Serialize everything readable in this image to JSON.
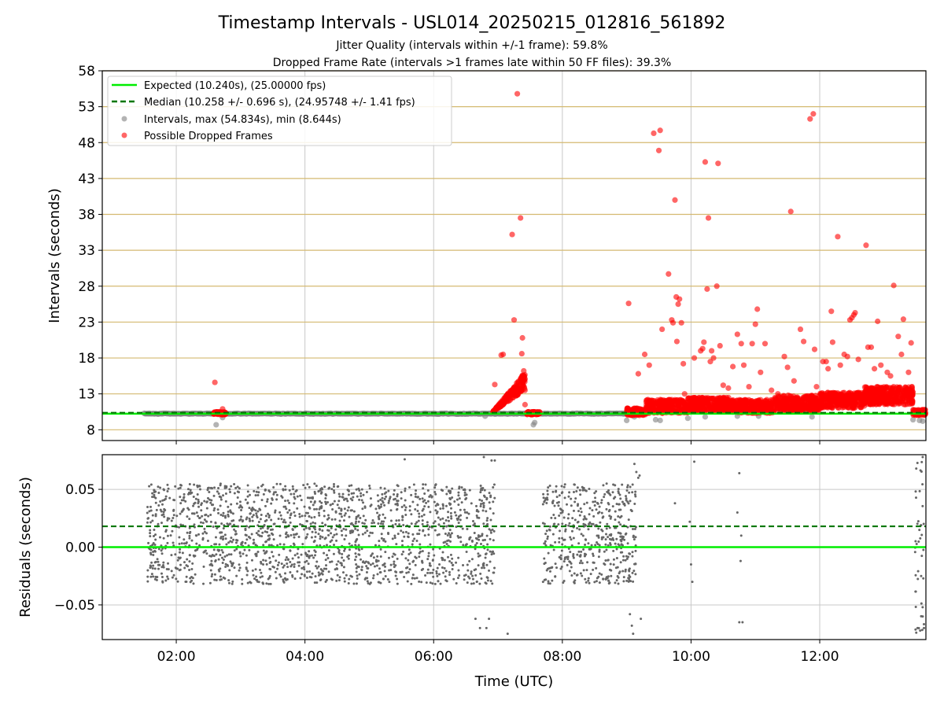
{
  "header": {
    "title": "Timestamp Intervals - USL014_20250215_012816_561892",
    "subtitle_1": "Jitter Quality (intervals within +/-1 frame): 59.8%",
    "subtitle_2": "Dropped Frame Rate (intervals >1 frames late within 50 FF files): 39.3%"
  },
  "colors": {
    "expected": "#00ee00",
    "median": "#007700",
    "intervals": "#808080",
    "dropped": "#ff0000",
    "hgrid": "#d4b970",
    "vgrid": "#c8c8c8"
  },
  "chart_data": [
    {
      "type": "scatter",
      "title": "",
      "xlabel": "",
      "ylabel": "Intervals (seconds)",
      "x_unit": "hours UTC",
      "xlim": [
        0.85,
        13.65
      ],
      "ylim": [
        6.5,
        58
      ],
      "x_ticks": [
        2,
        4,
        6,
        8,
        10,
        12
      ],
      "y_ticks": [
        8,
        13,
        18,
        23,
        28,
        33,
        38,
        43,
        48,
        53,
        58
      ],
      "y_tick_labels": [
        "8",
        "13",
        "18",
        "23",
        "28",
        "33",
        "38",
        "43",
        "48",
        "53",
        "58"
      ],
      "grid": true,
      "legend_position": "top-left",
      "legend": [
        {
          "key": "expected",
          "label": "Expected (10.240s), (25.00000 fps)"
        },
        {
          "key": "median",
          "label": "Median (10.258 +/- 0.696 s), (24.95748 +/- 1.41 fps)"
        },
        {
          "key": "intervals",
          "label": "Intervals, max (54.834s), min (8.644s)"
        },
        {
          "key": "dropped",
          "label": "Possible Dropped Frames"
        }
      ],
      "expected_line": 10.24,
      "median_line": 10.258,
      "intervals_band": {
        "x_start": 1.5,
        "x_end": 9.0,
        "y": 10.24
      },
      "intervals_outliers": [
        {
          "x": 2.62,
          "y": 8.7
        },
        {
          "x": 2.72,
          "y": 9.7
        },
        {
          "x": 6.8,
          "y": 9.9
        },
        {
          "x": 7.55,
          "y": 8.7
        },
        {
          "x": 7.57,
          "y": 9.0
        },
        {
          "x": 9.0,
          "y": 9.3
        },
        {
          "x": 9.12,
          "y": 9.8
        },
        {
          "x": 9.45,
          "y": 9.4
        },
        {
          "x": 9.52,
          "y": 9.3
        },
        {
          "x": 9.95,
          "y": 9.6
        },
        {
          "x": 10.22,
          "y": 9.8
        },
        {
          "x": 10.72,
          "y": 9.9
        },
        {
          "x": 11.05,
          "y": 9.9
        },
        {
          "x": 11.88,
          "y": 9.8
        },
        {
          "x": 13.45,
          "y": 9.4
        },
        {
          "x": 13.55,
          "y": 9.3
        },
        {
          "x": 13.6,
          "y": 9.2
        }
      ],
      "dropped_isolated": [
        {
          "x": 2.6,
          "y": 14.6
        },
        {
          "x": 2.72,
          "y": 10.9
        },
        {
          "x": 7.22,
          "y": 35.2
        },
        {
          "x": 7.3,
          "y": 54.8
        },
        {
          "x": 7.35,
          "y": 37.5
        },
        {
          "x": 7.25,
          "y": 23.3
        },
        {
          "x": 7.38,
          "y": 20.8
        },
        {
          "x": 7.37,
          "y": 18.6
        },
        {
          "x": 7.4,
          "y": 16.2
        },
        {
          "x": 7.08,
          "y": 18.5
        },
        {
          "x": 7.05,
          "y": 18.4
        },
        {
          "x": 6.95,
          "y": 14.3
        },
        {
          "x": 7.42,
          "y": 11.5
        },
        {
          "x": 9.03,
          "y": 25.6
        },
        {
          "x": 9.18,
          "y": 15.8
        },
        {
          "x": 9.28,
          "y": 18.5
        },
        {
          "x": 9.35,
          "y": 17.0
        },
        {
          "x": 9.42,
          "y": 49.3
        },
        {
          "x": 9.5,
          "y": 46.9
        },
        {
          "x": 9.52,
          "y": 49.7
        },
        {
          "x": 9.55,
          "y": 22.0
        },
        {
          "x": 9.65,
          "y": 29.7
        },
        {
          "x": 9.7,
          "y": 23.3
        },
        {
          "x": 9.72,
          "y": 22.9
        },
        {
          "x": 9.75,
          "y": 40.0
        },
        {
          "x": 9.77,
          "y": 26.5
        },
        {
          "x": 9.8,
          "y": 25.5
        },
        {
          "x": 9.82,
          "y": 26.2
        },
        {
          "x": 9.78,
          "y": 20.3
        },
        {
          "x": 9.85,
          "y": 22.9
        },
        {
          "x": 9.88,
          "y": 17.2
        },
        {
          "x": 9.9,
          "y": 13.0
        },
        {
          "x": 10.05,
          "y": 18.0
        },
        {
          "x": 10.15,
          "y": 19.0
        },
        {
          "x": 10.18,
          "y": 19.3
        },
        {
          "x": 10.2,
          "y": 20.2
        },
        {
          "x": 10.22,
          "y": 45.3
        },
        {
          "x": 10.25,
          "y": 27.6
        },
        {
          "x": 10.27,
          "y": 37.5
        },
        {
          "x": 10.3,
          "y": 17.5
        },
        {
          "x": 10.32,
          "y": 19.0
        },
        {
          "x": 10.35,
          "y": 18.0
        },
        {
          "x": 10.4,
          "y": 28.0
        },
        {
          "x": 10.42,
          "y": 45.1
        },
        {
          "x": 10.45,
          "y": 19.7
        },
        {
          "x": 10.5,
          "y": 14.2
        },
        {
          "x": 10.58,
          "y": 13.8
        },
        {
          "x": 10.65,
          "y": 16.8
        },
        {
          "x": 10.72,
          "y": 21.3
        },
        {
          "x": 10.78,
          "y": 20.0
        },
        {
          "x": 10.82,
          "y": 17.0
        },
        {
          "x": 10.9,
          "y": 14.0
        },
        {
          "x": 10.95,
          "y": 20.0
        },
        {
          "x": 11.0,
          "y": 22.7
        },
        {
          "x": 11.03,
          "y": 24.8
        },
        {
          "x": 11.08,
          "y": 16.0
        },
        {
          "x": 11.15,
          "y": 20.0
        },
        {
          "x": 11.25,
          "y": 13.5
        },
        {
          "x": 11.35,
          "y": 13.0
        },
        {
          "x": 11.45,
          "y": 18.2
        },
        {
          "x": 11.5,
          "y": 16.7
        },
        {
          "x": 11.55,
          "y": 38.4
        },
        {
          "x": 11.6,
          "y": 14.8
        },
        {
          "x": 11.7,
          "y": 22.0
        },
        {
          "x": 11.75,
          "y": 20.3
        },
        {
          "x": 11.85,
          "y": 51.3
        },
        {
          "x": 11.9,
          "y": 52.0
        },
        {
          "x": 11.92,
          "y": 19.2
        },
        {
          "x": 11.95,
          "y": 14.0
        },
        {
          "x": 12.05,
          "y": 17.5
        },
        {
          "x": 12.1,
          "y": 17.5
        },
        {
          "x": 12.13,
          "y": 16.5
        },
        {
          "x": 12.18,
          "y": 24.5
        },
        {
          "x": 12.2,
          "y": 20.2
        },
        {
          "x": 12.28,
          "y": 34.9
        },
        {
          "x": 12.32,
          "y": 17.0
        },
        {
          "x": 12.38,
          "y": 18.5
        },
        {
          "x": 12.43,
          "y": 18.2
        },
        {
          "x": 12.47,
          "y": 23.3
        },
        {
          "x": 12.5,
          "y": 23.6
        },
        {
          "x": 12.53,
          "y": 24.0
        },
        {
          "x": 12.55,
          "y": 24.3
        },
        {
          "x": 12.6,
          "y": 17.8
        },
        {
          "x": 12.72,
          "y": 33.7
        },
        {
          "x": 12.75,
          "y": 19.5
        },
        {
          "x": 12.8,
          "y": 19.5
        },
        {
          "x": 12.85,
          "y": 16.5
        },
        {
          "x": 12.9,
          "y": 23.1
        },
        {
          "x": 12.95,
          "y": 17.0
        },
        {
          "x": 13.05,
          "y": 16.0
        },
        {
          "x": 13.1,
          "y": 15.5
        },
        {
          "x": 13.15,
          "y": 28.1
        },
        {
          "x": 13.22,
          "y": 21.0
        },
        {
          "x": 13.27,
          "y": 18.5
        },
        {
          "x": 13.3,
          "y": 23.4
        },
        {
          "x": 13.42,
          "y": 20.1
        },
        {
          "x": 13.38,
          "y": 16.0
        }
      ],
      "dropped_clusters": [
        {
          "x_start": 2.58,
          "x_end": 2.77,
          "y_low": 10.1,
          "y_high": 10.5
        },
        {
          "x_start": 6.92,
          "x_end": 7.42,
          "y_low": 10.5,
          "y_high": 15.5
        },
        {
          "x_start": 7.45,
          "x_end": 7.65,
          "y_low": 10.1,
          "y_high": 10.5
        },
        {
          "x_start": 9.0,
          "x_end": 9.3,
          "y_low": 10.0,
          "y_high": 11.0
        },
        {
          "x_start": 9.3,
          "x_end": 9.95,
          "y_low": 10.3,
          "y_high": 12.2
        },
        {
          "x_start": 9.95,
          "x_end": 10.6,
          "y_low": 10.5,
          "y_high": 12.5
        },
        {
          "x_start": 10.6,
          "x_end": 11.3,
          "y_low": 10.3,
          "y_high": 12.2
        },
        {
          "x_start": 11.3,
          "x_end": 12.0,
          "y_low": 10.5,
          "y_high": 12.8
        },
        {
          "x_start": 12.0,
          "x_end": 12.7,
          "y_low": 11.0,
          "y_high": 13.2
        },
        {
          "x_start": 12.7,
          "x_end": 13.45,
          "y_low": 11.5,
          "y_high": 14.0
        },
        {
          "x_start": 13.45,
          "x_end": 13.65,
          "y_low": 10.0,
          "y_high": 10.8
        }
      ]
    },
    {
      "type": "scatter",
      "title": "",
      "xlabel": "Time (UTC)",
      "ylabel": "Residuals (seconds)",
      "x_unit": "hours UTC",
      "xlim": [
        0.85,
        13.65
      ],
      "ylim": [
        -0.08,
        0.08
      ],
      "x_ticks": [
        2,
        4,
        6,
        8,
        10,
        12
      ],
      "x_tick_labels": [
        "02:00",
        "04:00",
        "06:00",
        "08:00",
        "10:00",
        "12:00"
      ],
      "y_ticks": [
        -0.05,
        0.0,
        0.05
      ],
      "y_tick_labels": [
        "−0.05",
        "0.00",
        "0.05"
      ],
      "grid": true,
      "expected_line": 0.0,
      "median_line": 0.018,
      "residual_bands": [
        {
          "x_start": 1.55,
          "x_end": 6.95,
          "y_low": -0.032,
          "y_high": 0.055
        },
        {
          "x_start": 7.7,
          "x_end": 9.15,
          "y_low": -0.032,
          "y_high": 0.055
        }
      ],
      "residual_outliers": [
        {
          "x": 6.65,
          "y": -0.062
        },
        {
          "x": 6.72,
          "y": -0.07
        },
        {
          "x": 6.82,
          "y": -0.07
        },
        {
          "x": 6.86,
          "y": -0.062
        },
        {
          "x": 6.9,
          "y": 0.075
        },
        {
          "x": 6.95,
          "y": 0.075
        },
        {
          "x": 6.78,
          "y": 0.078
        },
        {
          "x": 7.15,
          "y": -0.075
        },
        {
          "x": 5.55,
          "y": 0.076
        },
        {
          "x": 9.05,
          "y": -0.058
        },
        {
          "x": 9.08,
          "y": -0.068
        },
        {
          "x": 9.1,
          "y": -0.075
        },
        {
          "x": 9.12,
          "y": 0.072
        },
        {
          "x": 9.15,
          "y": 0.065
        },
        {
          "x": 9.18,
          "y": 0.06
        },
        {
          "x": 9.2,
          "y": 0.062
        },
        {
          "x": 9.22,
          "y": -0.062
        },
        {
          "x": 9.75,
          "y": 0.038
        },
        {
          "x": 9.98,
          "y": 0.022
        },
        {
          "x": 10.0,
          "y": -0.015
        },
        {
          "x": 10.02,
          "y": -0.03
        },
        {
          "x": 10.05,
          "y": 0.074
        },
        {
          "x": 10.75,
          "y": 0.064
        },
        {
          "x": 10.72,
          "y": 0.03
        },
        {
          "x": 10.75,
          "y": -0.065
        },
        {
          "x": 10.8,
          "y": -0.065
        },
        {
          "x": 10.78,
          "y": 0.01
        },
        {
          "x": 10.77,
          "y": -0.012
        },
        {
          "x": 13.5,
          "y": 0.068
        },
        {
          "x": 13.52,
          "y": -0.07
        },
        {
          "x": 13.5,
          "y": -0.074
        },
        {
          "x": 13.6,
          "y": 0.078
        },
        {
          "x": 13.6,
          "y": -0.06
        },
        {
          "x": 13.62,
          "y": -0.07
        }
      ]
    }
  ]
}
